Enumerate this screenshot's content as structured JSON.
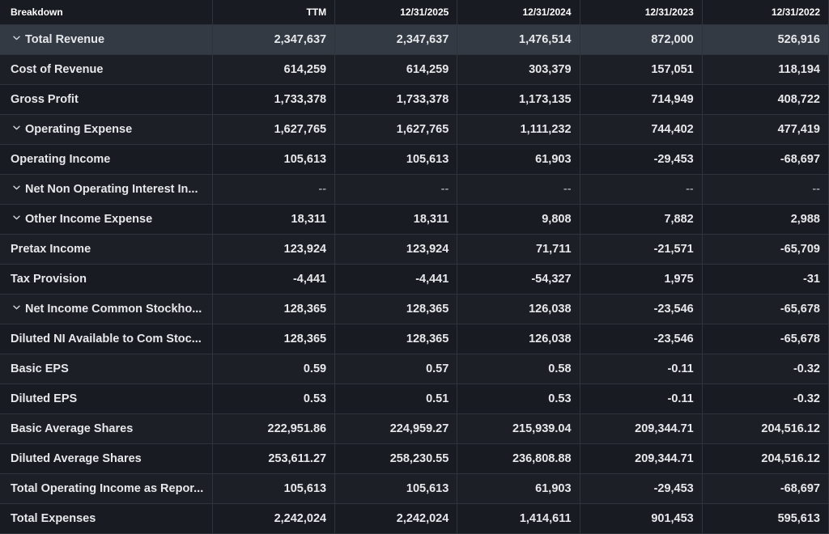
{
  "table": {
    "headers": [
      "Breakdown",
      "TTM",
      "12/31/2025",
      "12/31/2024",
      "12/31/2023",
      "12/31/2022"
    ],
    "rows": [
      {
        "label": "Total Revenue",
        "expandable": true,
        "values": [
          "2,347,637",
          "2,347,637",
          "1,476,514",
          "872,000",
          "526,916"
        ]
      },
      {
        "label": "Cost of Revenue",
        "expandable": false,
        "values": [
          "614,259",
          "614,259",
          "303,379",
          "157,051",
          "118,194"
        ]
      },
      {
        "label": "Gross Profit",
        "expandable": false,
        "values": [
          "1,733,378",
          "1,733,378",
          "1,173,135",
          "714,949",
          "408,722"
        ]
      },
      {
        "label": "Operating Expense",
        "expandable": true,
        "values": [
          "1,627,765",
          "1,627,765",
          "1,111,232",
          "744,402",
          "477,419"
        ]
      },
      {
        "label": "Operating Income",
        "expandable": false,
        "values": [
          "105,613",
          "105,613",
          "61,903",
          "-29,453",
          "-68,697"
        ]
      },
      {
        "label": "Net Non Operating Interest In...",
        "expandable": true,
        "values": [
          "--",
          "--",
          "--",
          "--",
          "--"
        ]
      },
      {
        "label": "Other Income Expense",
        "expandable": true,
        "values": [
          "18,311",
          "18,311",
          "9,808",
          "7,882",
          "2,988"
        ]
      },
      {
        "label": "Pretax Income",
        "expandable": false,
        "values": [
          "123,924",
          "123,924",
          "71,711",
          "-21,571",
          "-65,709"
        ]
      },
      {
        "label": "Tax Provision",
        "expandable": false,
        "values": [
          "-4,441",
          "-4,441",
          "-54,327",
          "1,975",
          "-31"
        ]
      },
      {
        "label": "Net Income Common Stockho...",
        "expandable": true,
        "values": [
          "128,365",
          "128,365",
          "126,038",
          "-23,546",
          "-65,678"
        ]
      },
      {
        "label": "Diluted NI Available to Com Stoc...",
        "expandable": false,
        "values": [
          "128,365",
          "128,365",
          "126,038",
          "-23,546",
          "-65,678"
        ]
      },
      {
        "label": "Basic EPS",
        "expandable": false,
        "values": [
          "0.59",
          "0.57",
          "0.58",
          "-0.11",
          "-0.32"
        ]
      },
      {
        "label": "Diluted EPS",
        "expandable": false,
        "values": [
          "0.53",
          "0.51",
          "0.53",
          "-0.11",
          "-0.32"
        ]
      },
      {
        "label": "Basic Average Shares",
        "expandable": false,
        "values": [
          "222,951.86",
          "224,959.27",
          "215,939.04",
          "209,344.71",
          "204,516.12"
        ]
      },
      {
        "label": "Diluted Average Shares",
        "expandable": false,
        "values": [
          "253,611.27",
          "258,230.55",
          "236,808.88",
          "209,344.71",
          "204,516.12"
        ]
      },
      {
        "label": "Total Operating Income as Repor...",
        "expandable": false,
        "values": [
          "105,613",
          "105,613",
          "61,903",
          "-29,453",
          "-68,697"
        ]
      },
      {
        "label": "Total Expenses",
        "expandable": false,
        "values": [
          "2,242,024",
          "2,242,024",
          "1,414,611",
          "901,453",
          "595,613"
        ]
      }
    ],
    "highlight_row": 0
  },
  "icons": {
    "expand": "chevron-down-icon"
  },
  "colors": {
    "background": "#181b22",
    "highlight": "#333a43",
    "border": "#2e333c",
    "text": "#e6e8eb"
  }
}
